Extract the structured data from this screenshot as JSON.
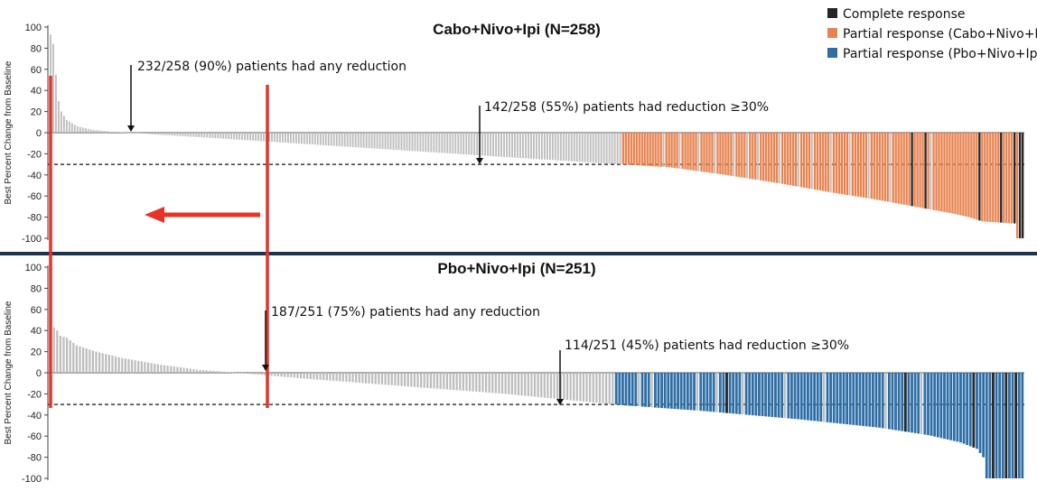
{
  "legend": [
    {
      "label": "Complete response",
      "color": "#262626"
    },
    {
      "label": "Partial response (Cabo+Nivo+Ipi)",
      "color": "#e8834f"
    },
    {
      "label": "Partial response (Pbo+Nivo+Ipi)",
      "color": "#2e6ea6"
    }
  ],
  "colors": {
    "stable": "#bdbdbd",
    "highlight": "#e53328",
    "divider": "#1a3550"
  },
  "chart_data": [
    {
      "type": "bar",
      "title": "Cabo+Nivo+Ipi (N=258)",
      "ylabel": "Best Percent Change from Baseline",
      "ylim": [
        -100,
        100
      ],
      "yticks": [
        100,
        80,
        60,
        40,
        20,
        0,
        -20,
        -40,
        -60,
        -80,
        -100
      ],
      "n": 258,
      "threshold": -30,
      "pr_color": "#e8834f",
      "profile": [
        [
          0,
          93
        ],
        [
          1,
          84
        ],
        [
          2,
          55
        ],
        [
          3,
          30
        ],
        [
          4,
          20
        ],
        [
          6,
          12
        ],
        [
          10,
          6
        ],
        [
          15,
          3
        ],
        [
          22,
          1
        ],
        [
          30,
          0
        ],
        [
          40,
          -2
        ],
        [
          60,
          -5
        ],
        [
          90,
          -10
        ],
        [
          120,
          -15
        ],
        [
          150,
          -20
        ],
        [
          180,
          -25
        ],
        [
          205,
          -29
        ],
        [
          218,
          -31
        ],
        [
          230,
          -33
        ],
        [
          250,
          -40
        ],
        [
          270,
          -48
        ],
        [
          290,
          -57
        ],
        [
          305,
          -63
        ],
        [
          320,
          -70
        ],
        [
          335,
          -77
        ],
        [
          340,
          -80
        ],
        [
          345,
          -84
        ],
        [
          357,
          -86
        ],
        [
          358,
          -100
        ],
        [
          360,
          -100
        ]
      ],
      "total_slots": 361,
      "cr_indices": [
        319,
        324,
        344,
        352,
        357,
        359,
        360
      ],
      "stable_after_threshold": [
        227,
        233,
        240,
        246,
        253,
        258,
        262,
        270,
        277,
        282,
        289,
        296,
        303,
        311,
        326
      ],
      "annotations": [
        {
          "text": "232/258 (90%) patients had any reduction"
        },
        {
          "text": "142/258 (55%) patients had reduction ≥30%"
        }
      ]
    },
    {
      "type": "bar",
      "title": "Pbo+Nivo+Ipi (N=251)",
      "ylabel": "Best Percent Change from Baseline",
      "ylim": [
        -100,
        100
      ],
      "yticks": [
        100,
        80,
        60,
        40,
        20,
        0,
        -20,
        -40,
        -60,
        -80,
        -100
      ],
      "n": 251,
      "threshold": -30,
      "pr_color": "#2e6ea6",
      "profile": [
        [
          0,
          69
        ],
        [
          1,
          43
        ],
        [
          2,
          40
        ],
        [
          3,
          35
        ],
        [
          5,
          33
        ],
        [
          8,
          26
        ],
        [
          14,
          20
        ],
        [
          22,
          14
        ],
        [
          33,
          8
        ],
        [
          45,
          3
        ],
        [
          57,
          0
        ],
        [
          80,
          -6
        ],
        [
          110,
          -13
        ],
        [
          140,
          -20
        ],
        [
          160,
          -26
        ],
        [
          170,
          -29
        ],
        [
          177,
          -31
        ],
        [
          200,
          -36
        ],
        [
          230,
          -44
        ],
        [
          255,
          -52
        ],
        [
          270,
          -59
        ],
        [
          280,
          -66
        ],
        [
          285,
          -72
        ],
        [
          287,
          -80
        ],
        [
          288,
          -100
        ],
        [
          299,
          -100
        ]
      ],
      "total_slots": 300,
      "cr_indices": [
        208,
        263,
        284,
        290,
        294,
        297
      ],
      "stable_after_threshold": [
        181,
        185,
        199,
        205,
        213,
        226,
        238,
        257,
        268
      ],
      "annotations": [
        {
          "text": "187/251 (75%) patients had any reduction"
        },
        {
          "text": "114/251 (45%) patients had reduction ≥30%"
        }
      ]
    }
  ]
}
